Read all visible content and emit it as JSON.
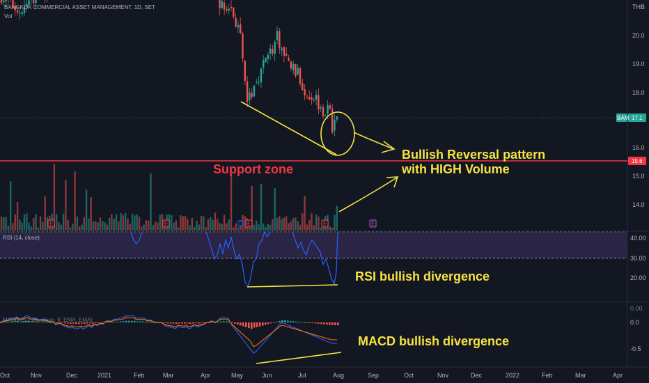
{
  "chart_data": {
    "type": "candlestick",
    "title": "BANGKOK COMMERCIAL ASSET MANAGEMENT, 1D, SET",
    "currency": "THB",
    "volume_label": "Vol",
    "colors": {
      "up": "#26a69a",
      "down": "#ef5350",
      "annotation": "#f5e342",
      "support": "#f23645",
      "rsi": "#2962ff",
      "macd": "#2962ff",
      "signal": "#ff6d00"
    },
    "price_axis": {
      "ticks": [
        "20.0",
        "19.0",
        "18.0",
        "16.0",
        "15.0",
        "14.0"
      ]
    },
    "last_price": {
      "symbol": "BAM",
      "value": "17.1"
    },
    "support_level": "15.6",
    "x_axis": {
      "labels": [
        "Oct",
        "Nov",
        "Dec",
        "2021",
        "Feb",
        "Mar",
        "Apr",
        "May",
        "Jun",
        "Jul",
        "Aug",
        "Sep",
        "Oct",
        "Nov",
        "Dec",
        "2022",
        "Feb",
        "Mar",
        "Apr"
      ]
    },
    "price_path": [
      [
        0,
        21.5
      ],
      [
        15,
        21.2
      ],
      [
        30,
        20.9
      ],
      [
        45,
        21.3
      ],
      [
        60,
        21.7
      ],
      [
        75,
        21.5
      ],
      [
        90,
        21.9
      ],
      [
        105,
        22.0
      ],
      [
        120,
        21.8
      ],
      [
        135,
        22.0
      ],
      [
        150,
        21.9
      ],
      [
        165,
        21.6
      ],
      [
        180,
        22.1
      ],
      [
        195,
        21.9
      ],
      [
        210,
        21.8
      ],
      [
        225,
        22.0
      ],
      [
        240,
        22.0
      ],
      [
        255,
        21.9
      ],
      [
        270,
        22.0
      ],
      [
        285,
        21.9
      ],
      [
        300,
        21.9
      ],
      [
        310,
        21.6
      ],
      [
        320,
        21.0
      ],
      [
        330,
        21.1
      ],
      [
        340,
        20.5
      ],
      [
        345,
        20.0
      ],
      [
        350,
        18.6
      ],
      [
        356,
        17.7
      ],
      [
        362,
        18.1
      ],
      [
        370,
        18.6
      ],
      [
        378,
        19.0
      ],
      [
        385,
        19.6
      ],
      [
        392,
        19.4
      ],
      [
        398,
        20.0
      ],
      [
        404,
        19.6
      ],
      [
        410,
        19.2
      ],
      [
        418,
        19.0
      ],
      [
        426,
        18.8
      ],
      [
        434,
        18.3
      ],
      [
        442,
        18.0
      ],
      [
        450,
        18.0
      ],
      [
        458,
        17.7
      ],
      [
        466,
        17.4
      ],
      [
        472,
        17.5
      ],
      [
        478,
        16.8
      ],
      [
        483,
        17.2
      ]
    ],
    "rsi": {
      "label": "RSI (14, close)",
      "ticks": [
        "40.00",
        "30.00",
        "20.00"
      ],
      "overbought": 40,
      "oversold": 30,
      "visible_range": [
        12,
        42
      ]
    },
    "macd": {
      "label": "MACD (12, 26, close, 9, EMA, EMA)",
      "ticks": [
        "0.00",
        "0.0",
        "-0.5"
      ]
    },
    "event_markers": [
      {
        "label": "E",
        "color": "#ef5350"
      },
      {
        "label": "E",
        "color": "#ef5350"
      },
      {
        "label": "D",
        "color": "#2962ff"
      },
      {
        "label": "E",
        "color": "#ef5350"
      },
      {
        "label": "E",
        "color": "#ef5350"
      },
      {
        "label": "E",
        "color": "#b45fc8"
      }
    ],
    "annotations": [
      {
        "text": "Bullish Reversal pattern"
      },
      {
        "text": "with HIGH Volume"
      },
      {
        "text": "Support zone"
      },
      {
        "text": "RSI bullish divergence"
      },
      {
        "text": "MACD bullish divergence"
      }
    ]
  }
}
